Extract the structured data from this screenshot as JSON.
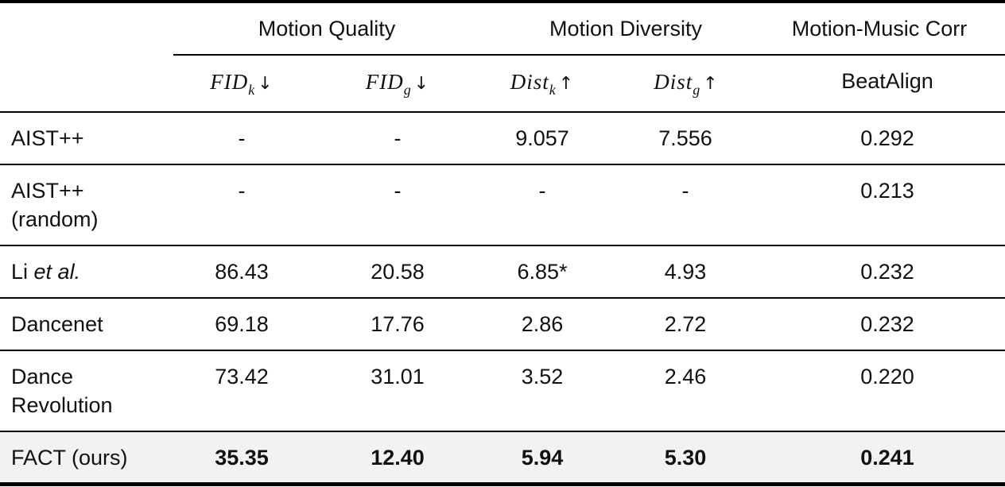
{
  "headers": {
    "motion_quality": "Motion Quality",
    "motion_diversity": "Motion Diversity",
    "motion_music_corr": "Motion-Music Corr",
    "metrics": [
      {
        "base": "FID",
        "sub": "k",
        "arrow": "↓"
      },
      {
        "base": "FID",
        "sub": "g",
        "arrow": "↓"
      },
      {
        "base": "Dist",
        "sub": "k",
        "arrow": "↑"
      },
      {
        "base": "Dist",
        "sub": "g",
        "arrow": "↑"
      }
    ],
    "beatalign": "BeatAlign"
  },
  "rows": [
    {
      "method": [
        "AIST++"
      ],
      "fid_k": "-",
      "fid_g": "-",
      "dist_k": "9.057",
      "dist_g": "7.556",
      "beatalign": "0.292"
    },
    {
      "method": [
        "AIST++",
        "(random)"
      ],
      "fid_k": "-",
      "fid_g": "-",
      "dist_k": "-",
      "dist_g": "-",
      "beatalign": "0.213"
    },
    {
      "method_prefix": "Li ",
      "method_italic": "et al.",
      "fid_k": "86.43",
      "fid_g": "20.58",
      "dist_k": "6.85*",
      "dist_g": "4.93",
      "beatalign": "0.232"
    },
    {
      "method": [
        "Dancenet"
      ],
      "fid_k": "69.18",
      "fid_g": "17.76",
      "dist_k": "2.86",
      "dist_g": "2.72",
      "beatalign": "0.232"
    },
    {
      "method": [
        "Dance",
        "Revolution"
      ],
      "fid_k": "73.42",
      "fid_g": "31.01",
      "dist_k": "3.52",
      "dist_g": "2.46",
      "beatalign": "0.220"
    },
    {
      "method": [
        "FACT (ours)"
      ],
      "fid_k": "35.35",
      "fid_g": "12.40",
      "dist_k": "5.94",
      "dist_g": "5.30",
      "beatalign": "0.241"
    }
  ]
}
